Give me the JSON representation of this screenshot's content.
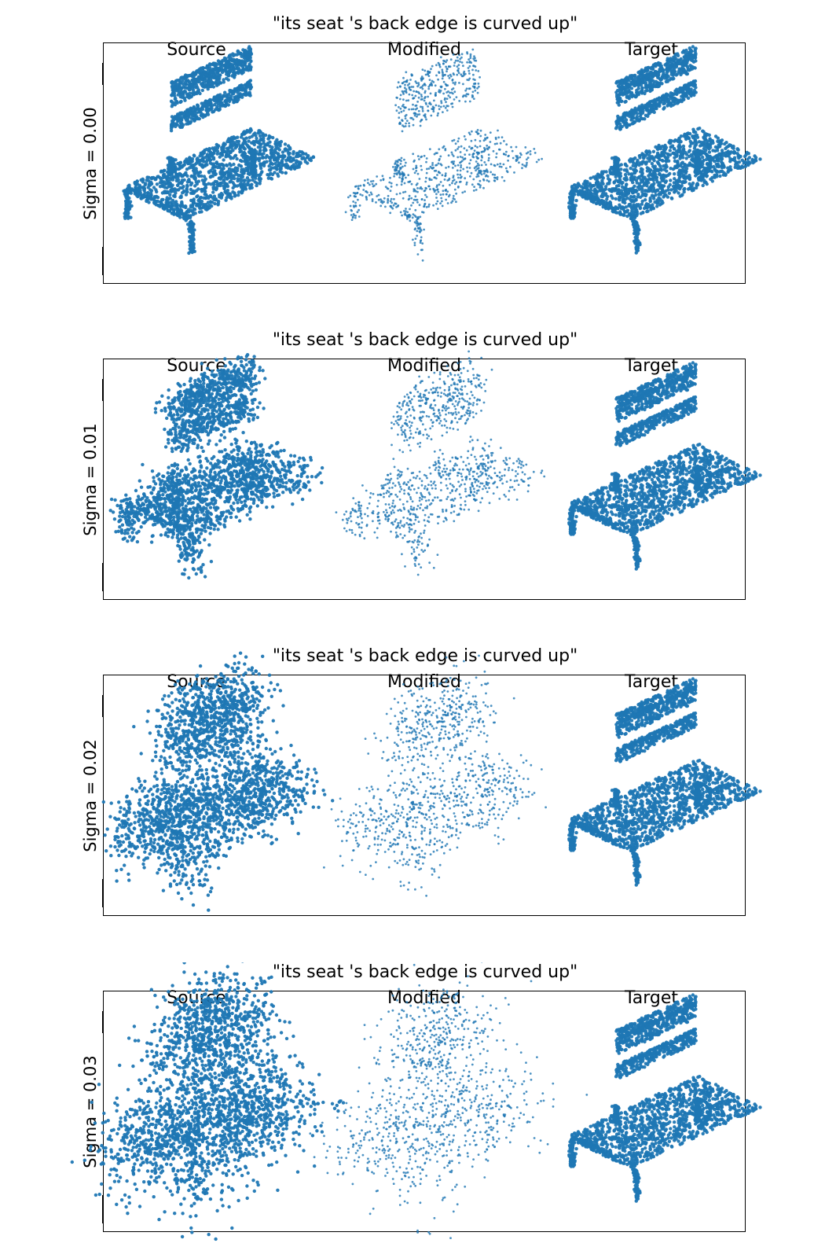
{
  "figure": {
    "accent_color": "#1f77b4",
    "panels": [
      {
        "title": "\"its seat 's back edge is curved up\"",
        "ylabel": "Sigma = 0.00",
        "columns": [
          "Source",
          "Modified",
          "Target"
        ],
        "noise": [
          0.0,
          0.0,
          0.0
        ]
      },
      {
        "title": "\"its seat 's back edge is curved up\"",
        "ylabel": "Sigma = 0.01",
        "columns": [
          "Source",
          "Modified",
          "Target"
        ],
        "noise": [
          0.01,
          0.01,
          0.0
        ]
      },
      {
        "title": "\"its seat 's back edge is curved up\"",
        "ylabel": "Sigma = 0.02",
        "columns": [
          "Source",
          "Modified",
          "Target"
        ],
        "noise": [
          0.02,
          0.02,
          0.0
        ]
      },
      {
        "title": "\"its seat 's back edge is curved up\"",
        "ylabel": "Sigma = 0.03",
        "columns": [
          "Source",
          "Modified",
          "Target"
        ],
        "noise": [
          0.03,
          0.03,
          0.0
        ]
      }
    ]
  },
  "chart_data": {
    "type": "scatter",
    "panels": [
      {
        "title": "\"its seat 's back edge is curved up\"",
        "ylabel": "Sigma = 0.00",
        "sigma": 0.0,
        "series": [
          {
            "name": "Source"
          },
          {
            "name": "Modified"
          },
          {
            "name": "Target"
          }
        ]
      },
      {
        "title": "\"its seat 's back edge is curved up\"",
        "ylabel": "Sigma = 0.01",
        "sigma": 0.01,
        "series": [
          {
            "name": "Source"
          },
          {
            "name": "Modified"
          },
          {
            "name": "Target"
          }
        ]
      },
      {
        "title": "\"its seat 's back edge is curved up\"",
        "ylabel": "Sigma = 0.02",
        "sigma": 0.02,
        "series": [
          {
            "name": "Source"
          },
          {
            "name": "Modified"
          },
          {
            "name": "Target"
          }
        ]
      },
      {
        "title": "\"its seat 's back edge is curved up\"",
        "ylabel": "Sigma = 0.03",
        "sigma": 0.03,
        "series": [
          {
            "name": "Source"
          },
          {
            "name": "Modified"
          },
          {
            "name": "Target"
          }
        ]
      }
    ],
    "grid": false,
    "point_color": "#1f77b4"
  }
}
